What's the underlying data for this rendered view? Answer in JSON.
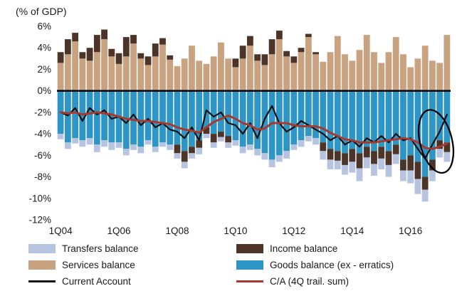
{
  "title": "(% of GDP)",
  "colors": {
    "transfers": "#b6c3e1",
    "income": "#4d3428",
    "services": "#c9a280",
    "goods": "#2e96c6",
    "ca_line": "#111111",
    "ca_trail": "#a63a2e"
  },
  "legend": [
    {
      "label": "Transfers balance",
      "swatch": "rect",
      "color_key": "transfers"
    },
    {
      "label": "Income balance",
      "swatch": "rect",
      "color_key": "income"
    },
    {
      "label": "Services balance",
      "swatch": "rect",
      "color_key": "services"
    },
    {
      "label": "Goods balance (ex - erratics)",
      "swatch": "rect",
      "color_key": "goods"
    },
    {
      "label": "Current Account",
      "swatch": "line",
      "color_key": "ca_line"
    },
    {
      "label": "C/A (4Q trail. sum)",
      "swatch": "line",
      "color_key": "ca_trail"
    }
  ],
  "chart_data": {
    "type": "bar",
    "stacked": true,
    "title": "(% of GDP)",
    "ylim": [
      -12,
      6
    ],
    "y_ticks": [
      6,
      4,
      2,
      0,
      -2,
      -4,
      -6,
      -8,
      -10,
      -12
    ],
    "x_tick_indices": [
      0,
      8,
      16,
      24,
      32,
      40,
      48
    ],
    "x_tick_labels": [
      "1Q04",
      "1Q06",
      "1Q08",
      "1Q10",
      "1Q12",
      "1Q14",
      "1Q16"
    ],
    "grid": false,
    "legend_position": "bottom",
    "x": [
      "1Q04",
      "2Q04",
      "3Q04",
      "4Q04",
      "1Q05",
      "2Q05",
      "3Q05",
      "4Q05",
      "1Q06",
      "2Q06",
      "3Q06",
      "4Q06",
      "1Q07",
      "2Q07",
      "3Q07",
      "4Q07",
      "1Q08",
      "2Q08",
      "3Q08",
      "4Q08",
      "1Q09",
      "2Q09",
      "3Q09",
      "4Q09",
      "1Q10",
      "2Q10",
      "3Q10",
      "4Q10",
      "1Q11",
      "2Q11",
      "3Q11",
      "4Q11",
      "1Q12",
      "2Q12",
      "3Q12",
      "4Q12",
      "1Q13",
      "2Q13",
      "3Q13",
      "4Q13",
      "1Q14",
      "2Q14",
      "3Q14",
      "4Q14",
      "1Q15",
      "2Q15",
      "3Q15",
      "4Q15",
      "1Q16",
      "2Q16",
      "3Q16",
      "4Q16",
      "1Q17",
      "2Q17"
    ],
    "stack_order": [
      "services",
      "goods",
      "income",
      "transfers"
    ],
    "series": [
      {
        "key": "transfers",
        "name": "Transfers balance",
        "type": "bar",
        "color_key": "transfers",
        "values": [
          -0.5,
          -0.6,
          -0.5,
          -0.6,
          -0.6,
          -0.7,
          -0.6,
          -0.7,
          -0.5,
          -0.6,
          -0.5,
          -0.6,
          -0.4,
          -0.5,
          -0.4,
          -0.5,
          -0.5,
          -0.6,
          -0.5,
          -0.6,
          -0.4,
          -0.5,
          -0.4,
          -0.5,
          -0.5,
          -0.6,
          -0.5,
          -0.6,
          -0.6,
          -0.7,
          -0.6,
          -0.7,
          -0.5,
          -0.6,
          -0.5,
          -0.6,
          -0.8,
          -0.9,
          -0.8,
          -0.9,
          -1.0,
          -1.2,
          -1.0,
          -1.1,
          -1.0,
          -1.1,
          -0.9,
          -1.0,
          -1.2,
          -1.4,
          -1.1,
          -1.0,
          -0.8,
          -0.9
        ]
      },
      {
        "key": "income",
        "name": "Income balance",
        "type": "bar",
        "color_key": "income",
        "values": [
          1.0,
          1.4,
          0.8,
          0.6,
          1.2,
          1.6,
          0.9,
          0.7,
          1.0,
          1.8,
          0.8,
          0.5,
          0.8,
          1.2,
          0.6,
          0.4,
          -0.8,
          -1.0,
          -0.6,
          -0.7,
          -0.6,
          -0.8,
          -0.5,
          -0.6,
          0.8,
          1.2,
          0.9,
          0.6,
          1.0,
          1.4,
          0.8,
          0.5,
          0.6,
          0.4,
          0.3,
          0.2,
          -0.8,
          -1.0,
          -0.9,
          -1.1,
          -1.2,
          -1.4,
          -1.0,
          -1.2,
          -1.1,
          -1.3,
          -0.9,
          -1.0,
          -1.4,
          -1.6,
          -1.2,
          -1.0,
          -0.8,
          -0.9
        ]
      },
      {
        "key": "services",
        "name": "Services balance",
        "type": "bar",
        "color_key": "services",
        "values": [
          2.6,
          3.4,
          4.6,
          3.0,
          2.8,
          3.6,
          4.8,
          3.2,
          2.5,
          3.2,
          4.4,
          3.0,
          2.4,
          3.2,
          4.3,
          2.9,
          2.3,
          3.0,
          4.2,
          2.8,
          2.5,
          3.2,
          4.5,
          3.0,
          2.2,
          3.0,
          4.2,
          2.8,
          2.4,
          3.4,
          4.8,
          3.2,
          2.6,
          3.6,
          5.0,
          3.4,
          2.7,
          3.6,
          5.1,
          3.4,
          2.8,
          3.8,
          5.2,
          3.6,
          2.6,
          3.6,
          5.0,
          3.4,
          2.2,
          3.0,
          4.2,
          2.8,
          2.6,
          5.2
        ]
      },
      {
        "key": "goods",
        "name": "Goods balance (ex - erratics)",
        "type": "bar",
        "color_key": "goods",
        "values": [
          -4.0,
          -4.8,
          -4.4,
          -4.6,
          -4.4,
          -5.0,
          -4.6,
          -4.8,
          -4.8,
          -5.4,
          -5.0,
          -5.2,
          -4.6,
          -5.2,
          -4.8,
          -5.0,
          -5.0,
          -5.6,
          -5.2,
          -4.6,
          -3.4,
          -4.0,
          -3.8,
          -4.2,
          -4.6,
          -5.2,
          -5.0,
          -5.4,
          -5.8,
          -6.4,
          -6.0,
          -5.6,
          -5.0,
          -4.6,
          -4.2,
          -4.4,
          -4.8,
          -5.4,
          -5.6,
          -5.8,
          -5.4,
          -5.8,
          -5.2,
          -5.6,
          -5.2,
          -5.6,
          -5.0,
          -6.4,
          -6.0,
          -6.6,
          -8.0,
          -6.4,
          -4.6,
          -4.8
        ]
      },
      {
        "key": "ca",
        "name": "Current Account",
        "type": "line",
        "color_key": "ca_line",
        "values": [
          -2.0,
          -2.3,
          -1.6,
          -2.8,
          -1.6,
          -2.2,
          -1.8,
          -2.6,
          -2.4,
          -3.0,
          -2.2,
          -3.2,
          -2.6,
          -3.4,
          -3.0,
          -3.6,
          -3.8,
          -4.4,
          -3.4,
          -4.6,
          -1.8,
          -2.4,
          -2.0,
          -3.0,
          -3.2,
          -4.0,
          -3.0,
          -4.4,
          -2.6,
          -1.4,
          -3.0,
          -3.8,
          -3.4,
          -2.8,
          -3.2,
          -3.6,
          -4.0,
          -4.6,
          -4.2,
          -5.0,
          -4.6,
          -5.2,
          -4.4,
          -4.8,
          -4.2,
          -4.8,
          -4.0,
          -4.6,
          -4.4,
          -5.4,
          -6.3,
          -5.0,
          -3.8,
          -2.2
        ]
      },
      {
        "key": "ca_trail",
        "name": "C/A (4Q trail. sum)",
        "type": "line",
        "color_key": "ca_trail",
        "values": [
          -2.0,
          -2.1,
          -2.0,
          -2.2,
          -2.1,
          -2.0,
          -2.1,
          -2.2,
          -2.4,
          -2.6,
          -2.7,
          -2.8,
          -2.8,
          -2.9,
          -3.0,
          -3.1,
          -3.4,
          -3.6,
          -3.7,
          -3.9,
          -3.4,
          -2.9,
          -2.6,
          -2.3,
          -2.6,
          -3.0,
          -3.2,
          -3.6,
          -3.5,
          -3.0,
          -3.0,
          -3.0,
          -3.2,
          -3.3,
          -3.3,
          -3.3,
          -3.5,
          -3.9,
          -4.2,
          -4.5,
          -4.6,
          -4.8,
          -4.8,
          -4.8,
          -4.7,
          -4.6,
          -4.5,
          -4.4,
          -4.5,
          -4.8,
          -5.3,
          -5.4,
          -5.2,
          -4.9
        ]
      }
    ],
    "annotation": {
      "shape": "ellipse",
      "center_x_index": 51.5,
      "center_y": -4.7,
      "rx_quarters": 2.2,
      "ry_percent": 3.0,
      "rotation_deg": -14
    }
  }
}
